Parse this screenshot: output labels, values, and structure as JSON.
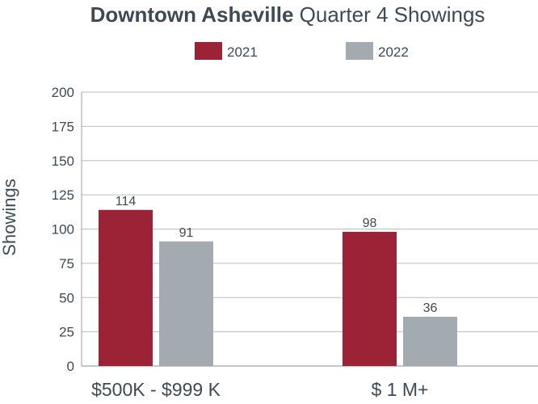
{
  "chart_data": {
    "type": "bar",
    "title_bold": "Downtown Asheville",
    "title_rest": " Quarter 4 Showings",
    "ylabel": "Showings",
    "xlabel": "",
    "categories": [
      "$500K - $999 K",
      "$ 1 M+"
    ],
    "series": [
      {
        "name": "2021",
        "color": "#9b2335",
        "values": [
          114,
          98
        ],
        "labels": [
          "114",
          "98"
        ]
      },
      {
        "name": "2022",
        "color": "#a3abb1",
        "values": [
          91,
          36
        ],
        "labels": [
          "91",
          "36"
        ]
      }
    ],
    "ylim": [
      0,
      200
    ],
    "yticks": [
      0,
      25,
      50,
      75,
      100,
      125,
      150,
      175,
      200
    ],
    "grid": true,
    "legend_position": "top-center"
  }
}
